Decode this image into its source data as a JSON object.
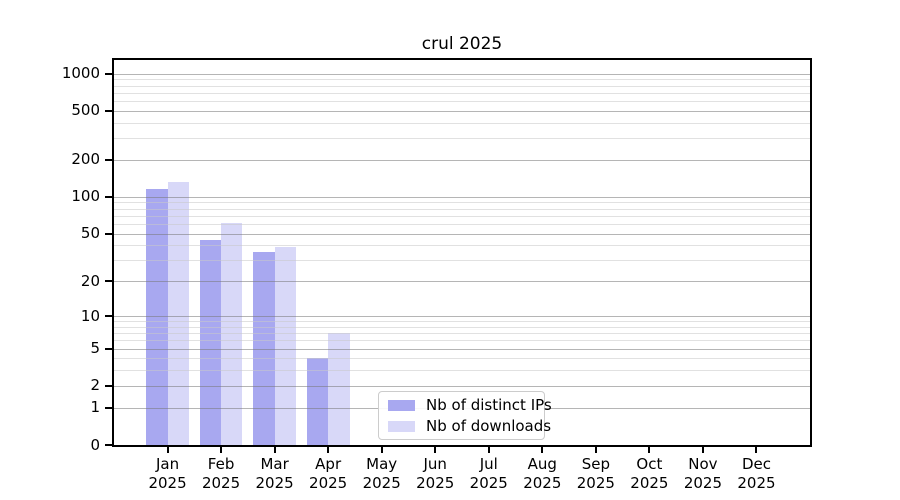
{
  "title": "crul 2025",
  "chart_data": {
    "type": "bar",
    "title": "crul 2025",
    "categories": [
      "Jan",
      "Feb",
      "Mar",
      "Apr",
      "May",
      "Jun",
      "Jul",
      "Aug",
      "Sep",
      "Oct",
      "Nov",
      "Dec"
    ],
    "year": "2025",
    "series": [
      {
        "name": "Nb of distinct IPs",
        "color": "#a8a8f0",
        "values": [
          116,
          44,
          35,
          4,
          null,
          null,
          null,
          null,
          null,
          null,
          null,
          null
        ]
      },
      {
        "name": "Nb of downloads",
        "color": "#d8d8f8",
        "values": [
          131,
          61,
          39,
          7,
          null,
          null,
          null,
          null,
          null,
          null,
          null,
          null
        ]
      }
    ],
    "xlabel": "",
    "ylabel": "",
    "y_axis": {
      "scale": "log10(v+1)",
      "ticks": [
        0,
        1,
        2,
        5,
        10,
        20,
        50,
        100,
        200,
        500,
        1000
      ],
      "minor_ticks": [
        3,
        4,
        6,
        7,
        8,
        9,
        30,
        40,
        60,
        70,
        80,
        90,
        300,
        400,
        600,
        700,
        800,
        900
      ],
      "ylim": [
        0,
        1200
      ]
    },
    "grid": "horizontal, drawn over bars",
    "legend": {
      "position": "lower center-left",
      "border_color": "#cccccc"
    }
  }
}
